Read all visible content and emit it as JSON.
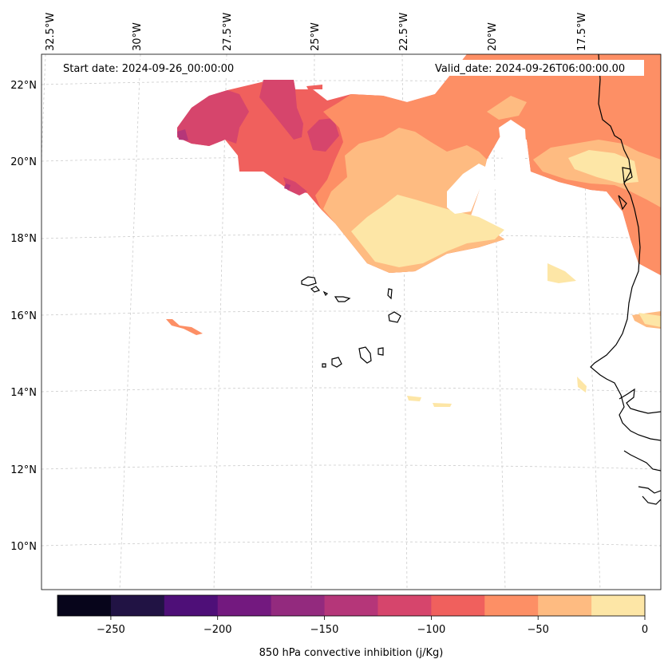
{
  "map": {
    "start_date": "Start date: 2024-09-26_00:00:00",
    "valid_date": "Valid_date: 2024-09-26T06:00:00.00",
    "lon_labels": [
      "32.5°W",
      "30°W",
      "27.5°W",
      "25°W",
      "22.5°W",
      "20°W",
      "17.5°W"
    ],
    "lat_labels": [
      "22°N",
      "20°N",
      "18°N",
      "16°N",
      "14°N",
      "12°N",
      "10°N"
    ],
    "region": "Cabo Verde and West African coast (Senegal / Mauritania)"
  },
  "colorbar": {
    "label": "850 hPa convective inhibition (j/Kg)",
    "ticks": [
      "−250",
      "−200",
      "−150",
      "−100",
      "−50",
      "0"
    ],
    "levels": [
      -275,
      -250,
      -225,
      -200,
      -175,
      -150,
      -125,
      -100,
      -75,
      -50,
      -25,
      0
    ],
    "colors": [
      "#07051b",
      "#211344",
      "#4e0f78",
      "#73197f",
      "#932a7e",
      "#b53679",
      "#d6456c",
      "#f0605d",
      "#fd8f65",
      "#febb81",
      "#fde6a6"
    ]
  },
  "colors": {
    "coastline": "#000000",
    "gridline": "#cccccc"
  }
}
